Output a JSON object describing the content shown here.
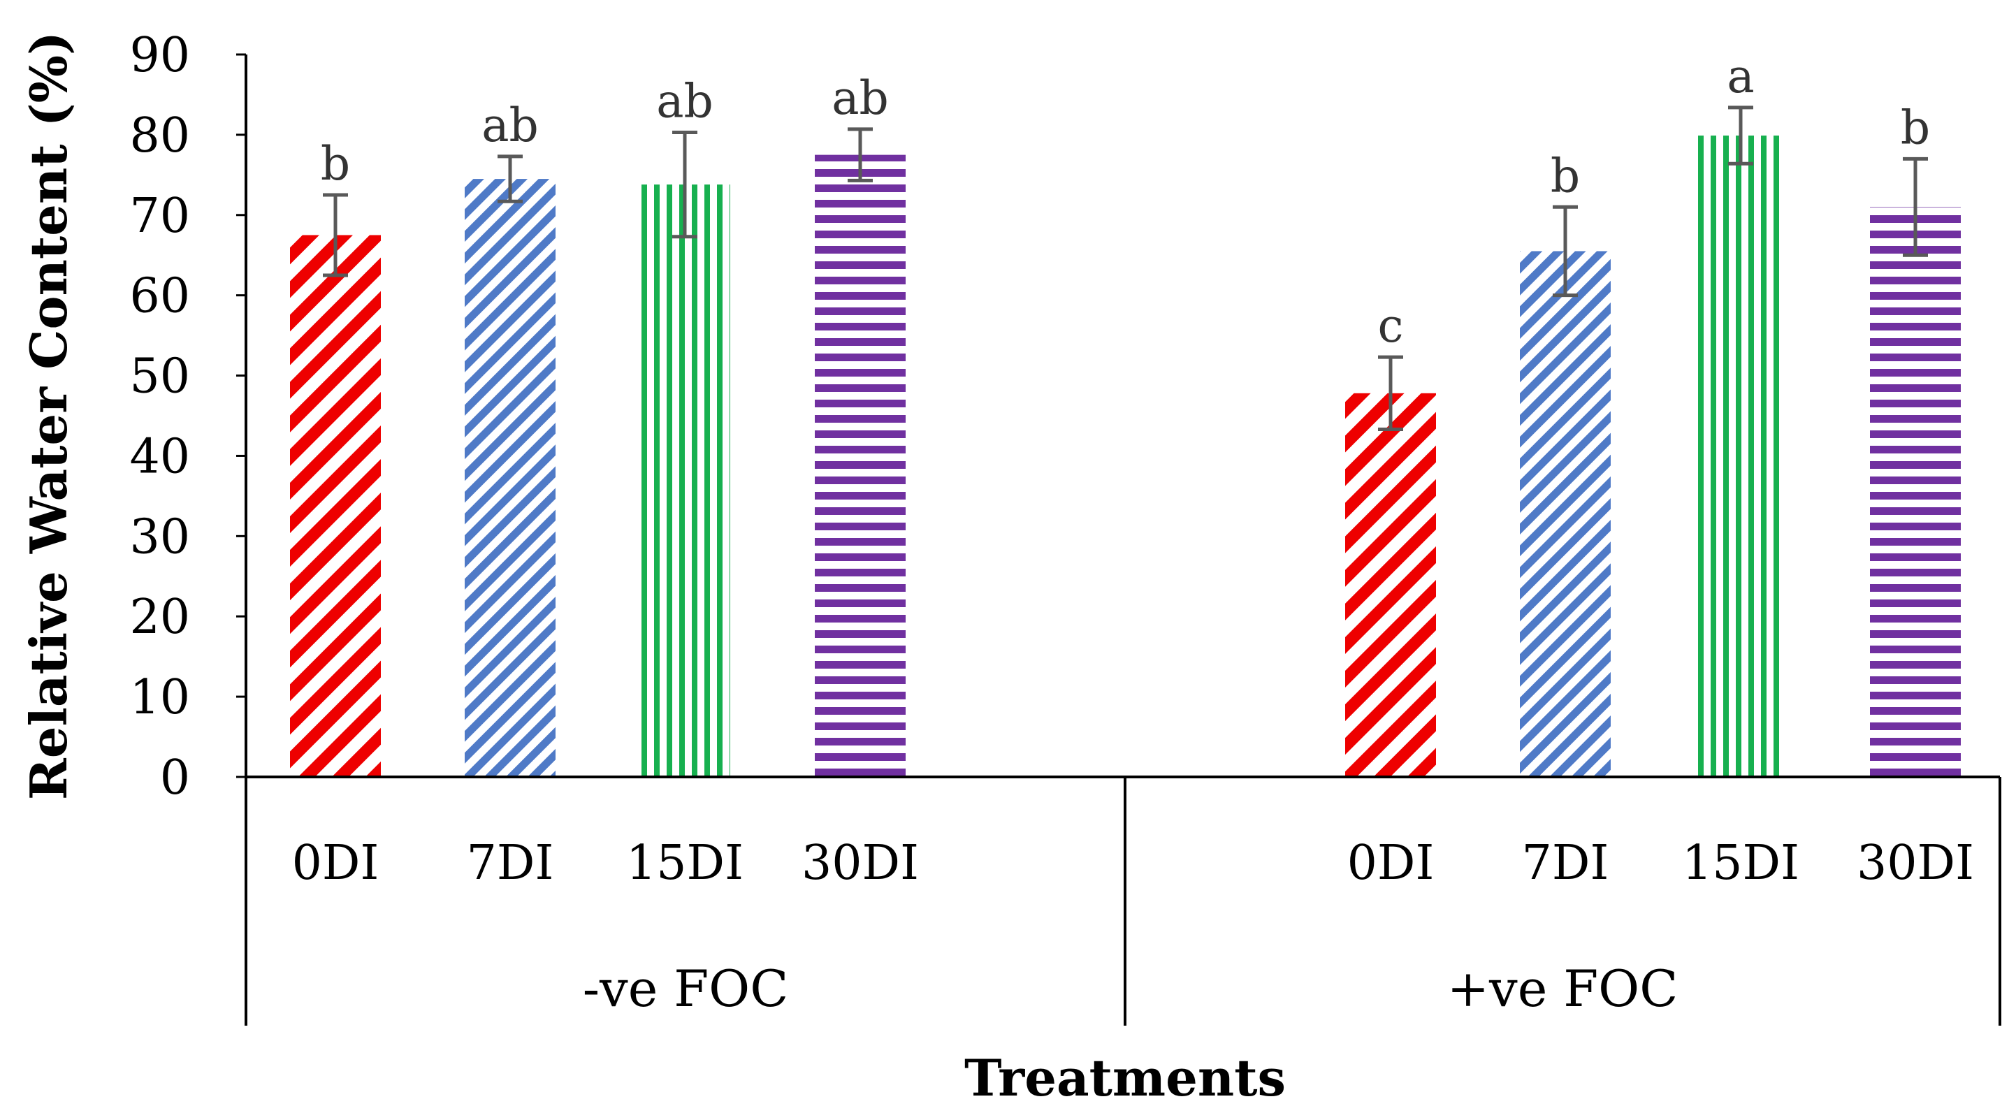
{
  "chart_data": {
    "type": "bar",
    "title": "",
    "xlabel": "Treatments",
    "ylabel": "Relative Water Content (%)",
    "ylim": [
      0,
      90
    ],
    "yticks": [
      0,
      10,
      20,
      30,
      40,
      50,
      60,
      70,
      80,
      90
    ],
    "grid": false,
    "legend": "none",
    "groups": [
      {
        "name": "-ve FOC",
        "categories": [
          "0DI",
          "7DI",
          "15DI",
          "30DI"
        ],
        "values": [
          67.5,
          74.5,
          73.8,
          77.5
        ],
        "errors": [
          5.0,
          2.8,
          6.5,
          3.2
        ],
        "letters": [
          "b",
          "ab",
          "ab",
          "ab"
        ]
      },
      {
        "name": "+ve FOC",
        "categories": [
          "0DI",
          "7DI",
          "15DI",
          "30DI"
        ],
        "values": [
          47.8,
          65.5,
          79.9,
          71.0
        ],
        "errors": [
          4.5,
          5.5,
          3.5,
          6.0
        ],
        "letters": [
          "c",
          "b",
          "a",
          "b"
        ]
      }
    ],
    "series_colors": {
      "0DI": "#ee0000",
      "7DI": "#4f7ac7",
      "15DI": "#17b04f",
      "30DI": "#7030a0"
    },
    "series_patterns": {
      "0DI": "wide diagonal stripes",
      "7DI": "narrow diagonal stripes",
      "15DI": "vertical stripes",
      "30DI": "horizontal stripes"
    },
    "error_bar_color": "#595959"
  }
}
